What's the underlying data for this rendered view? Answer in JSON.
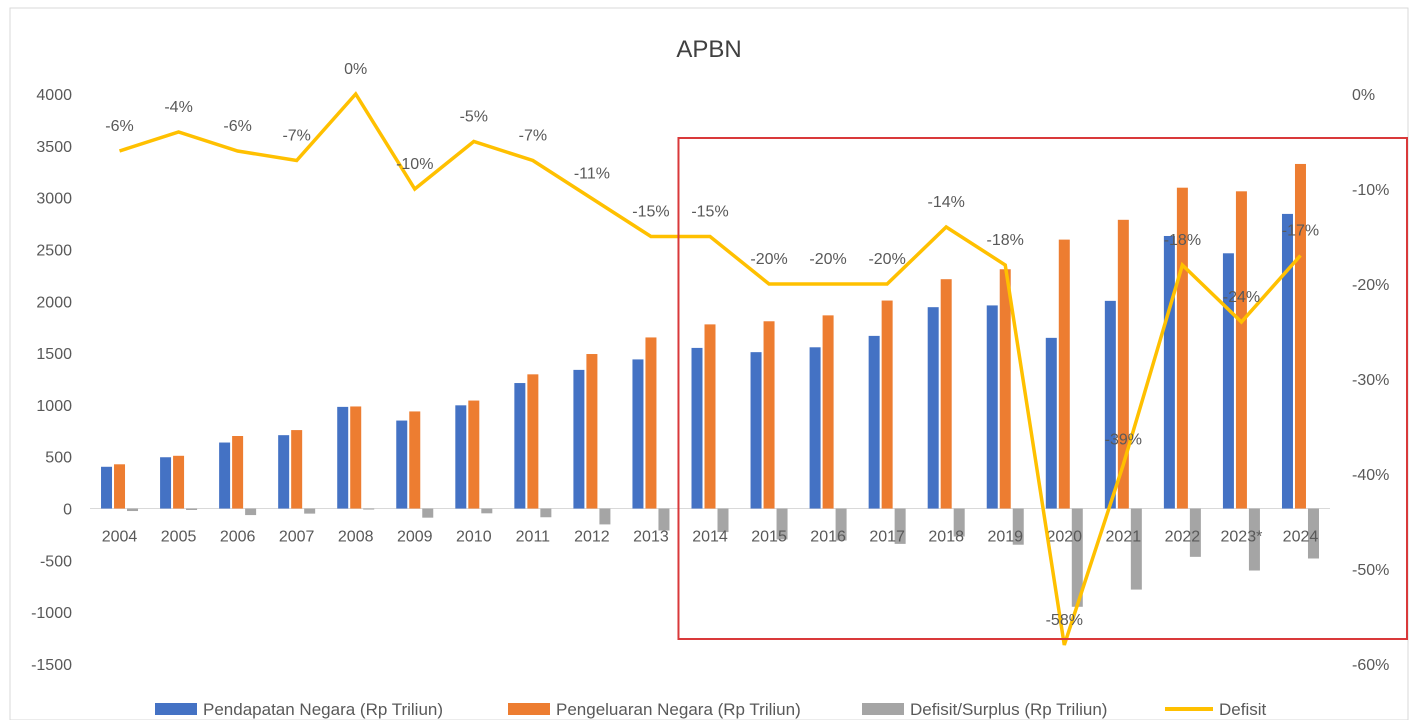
{
  "chart_data": {
    "type": "bar",
    "title": "APBN",
    "categories": [
      "2004",
      "2005",
      "2006",
      "2007",
      "2008",
      "2009",
      "2010",
      "2011",
      "2012",
      "2013",
      "2014",
      "2015",
      "2016",
      "2017",
      "2018",
      "2019",
      "2020",
      "2021",
      "2022",
      "2023*",
      "2024"
    ],
    "series": [
      {
        "name": "Pendapatan Negara (Rp Triliun)",
        "type": "bar",
        "axis": "left",
        "color": "#4472C4",
        "values": [
          403,
          495,
          637,
          708,
          981,
          849,
          996,
          1211,
          1338,
          1439,
          1550,
          1509,
          1556,
          1666,
          1943,
          1960,
          1647,
          2004,
          2630,
          2463,
          2843
        ]
      },
      {
        "name": "Pengeluaran Negara (Rp Triliun)",
        "type": "bar",
        "axis": "left",
        "color": "#ED7D31",
        "values": [
          427,
          509,
          700,
          757,
          985,
          937,
          1042,
          1295,
          1491,
          1651,
          1777,
          1807,
          1864,
          2007,
          2213,
          2309,
          2595,
          2786,
          3096,
          3061,
          3325
        ]
      },
      {
        "name": "Defisit/Surplus (Rp Triliun)",
        "type": "bar",
        "axis": "left",
        "color": "#A5A5A5",
        "values": [
          -24,
          -14,
          -63,
          -49,
          -4,
          -88,
          -46,
          -84,
          -153,
          -212,
          -227,
          -298,
          -308,
          -341,
          -270,
          -349,
          -948,
          -782,
          -466,
          -598,
          -482
        ]
      },
      {
        "name": "Defisit",
        "type": "line",
        "axis": "right",
        "color": "#FFC000",
        "values": [
          -6,
          -4,
          -6,
          -7,
          0,
          -10,
          -5,
          -7,
          -11,
          -15,
          -15,
          -20,
          -20,
          -20,
          -14,
          -18,
          -58,
          -39,
          -18,
          -24,
          -17
        ],
        "labels": [
          "-6%",
          "-4%",
          "-6%",
          "-7%",
          "0%",
          "-10%",
          "-5%",
          "-7%",
          "-11%",
          "-15%",
          "-15%",
          "-20%",
          "-20%",
          "-20%",
          "-14%",
          "-18%",
          "-58%",
          "-39%",
          "-18%",
          "-24%",
          "-17%"
        ]
      }
    ],
    "left_axis": {
      "ticks": [
        "4000",
        "3500",
        "3000",
        "2500",
        "2000",
        "1500",
        "1000",
        "500",
        "0",
        "-500",
        "-1000",
        "-1500"
      ],
      "ylim": [
        -1500,
        4000
      ]
    },
    "right_axis": {
      "ticks": [
        "0%",
        "-10%",
        "-20%",
        "-30%",
        "-40%",
        "-50%",
        "-60%"
      ],
      "ylim": [
        -60,
        0
      ]
    },
    "grid": false,
    "legend_position": "bottom",
    "highlight_box": {
      "from_category": "2014",
      "to_category": "2024",
      "color": "#D9393A"
    }
  }
}
